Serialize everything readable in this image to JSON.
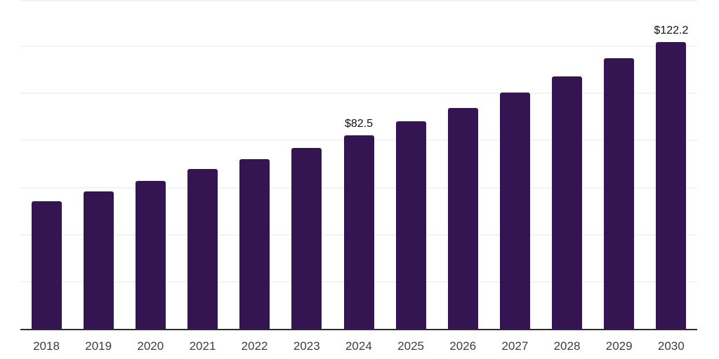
{
  "chart_data": {
    "type": "bar",
    "title": "",
    "xlabel": "",
    "ylabel": "",
    "categories": [
      "2018",
      "2019",
      "2020",
      "2021",
      "2022",
      "2023",
      "2024",
      "2025",
      "2026",
      "2027",
      "2028",
      "2029",
      "2030"
    ],
    "values": [
      54.4,
      58.6,
      63.2,
      68.2,
      72.3,
      77.2,
      82.5,
      88.4,
      94.1,
      100.6,
      107.5,
      115.4,
      122.2
    ],
    "data_labels": [
      {
        "category": "2024",
        "text": "$82.5"
      },
      {
        "category": "2030",
        "text": "$122.2"
      }
    ],
    "ylim": [
      0,
      140
    ],
    "gridline_step": 20,
    "grid": true,
    "legend": false,
    "y_axis_ticks_visible": false
  },
  "colors": {
    "bar": "#341551",
    "grid": "#f3f3f4",
    "axis": "#2d2d2d",
    "tick_label": "#3d3d3d",
    "data_label": "#111111",
    "background": "#ffffff"
  }
}
